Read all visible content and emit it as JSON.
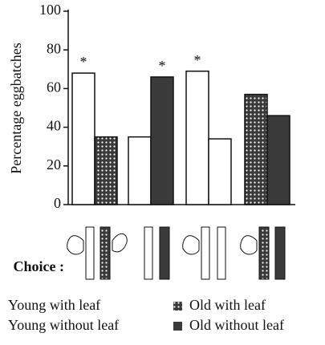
{
  "chart_data": {
    "type": "bar",
    "ylabel": "Percentage eggbatches",
    "categories": [
      null,
      null,
      null,
      null
    ],
    "series": [
      {
        "name": "Young with leaf",
        "color": "#ffffff",
        "values": [
          68,
          null,
          69,
          null
        ],
        "significant": [
          true,
          null,
          true,
          null
        ]
      },
      {
        "name": "Old with leaf",
        "color": "#3a3a3a",
        "pattern": "dots",
        "values": [
          35,
          null,
          null,
          57
        ],
        "significant": [
          false,
          null,
          null,
          false
        ]
      },
      {
        "name": "Young without leaf",
        "color": "#ffffff",
        "values": [
          null,
          35,
          34,
          null
        ],
        "significant": [
          null,
          false,
          false,
          null
        ]
      },
      {
        "name": "Old without leaf",
        "color": "#3a3a3a",
        "values": [
          null,
          66,
          null,
          46
        ],
        "significant": [
          null,
          true,
          null,
          false
        ]
      }
    ],
    "significance_marker": "*",
    "choice_label": "Choice :",
    "ylim": [
      0,
      100
    ],
    "yticks": [
      0,
      20,
      40,
      60,
      80,
      100
    ],
    "grid": false
  }
}
